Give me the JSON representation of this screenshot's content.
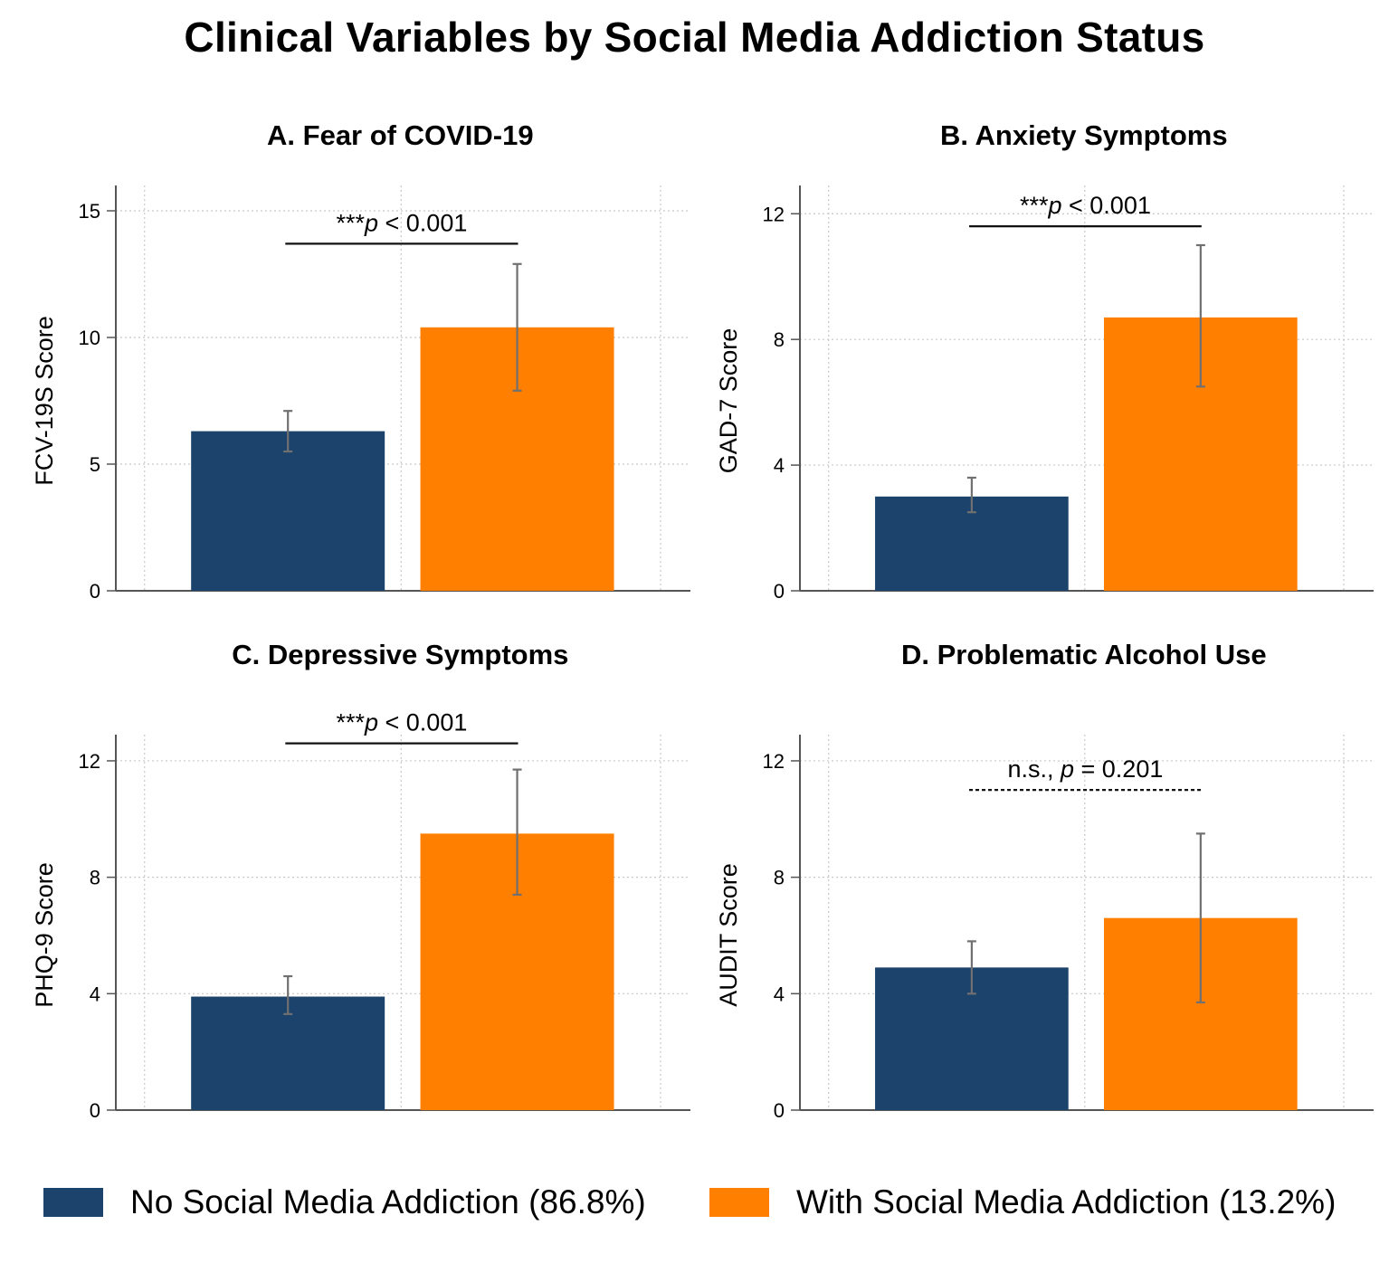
{
  "title": "Clinical Variables by Social Media Addiction Status",
  "colors": {
    "no_addiction": "#1b436b",
    "with_addiction": "#ff7f00",
    "axis": "#555555",
    "grid": "#c8c8c8",
    "errorbar": "#707070"
  },
  "legend": [
    {
      "label": "No Social Media Addiction (86.8%)",
      "color": "#1b436b"
    },
    {
      "label": "With Social Media Addiction (13.2%)",
      "color": "#ff7f00"
    }
  ],
  "chart_data": [
    {
      "type": "bar",
      "title": "A. Fear of COVID-19",
      "ylabel": "FCV-19S Score",
      "xlabel": "",
      "ylim": [
        0,
        16
      ],
      "yticks": [
        0,
        5,
        10,
        15
      ],
      "grid": true,
      "categories": [
        "No Social Media Addiction",
        "With Social Media Addiction"
      ],
      "values": [
        6.3,
        10.4
      ],
      "error_low": [
        5.5,
        7.9
      ],
      "error_high": [
        7.1,
        12.9
      ],
      "sig_star": "***",
      "sig_p": "p",
      "sig_rest": " < 0.001",
      "sig_level": 13.7,
      "sig_dashed": false
    },
    {
      "type": "bar",
      "title": "B. Anxiety Symptoms",
      "ylabel": "GAD-7 Score",
      "xlabel": "",
      "ylim": [
        0,
        12.9
      ],
      "yticks": [
        0,
        4,
        8,
        12
      ],
      "grid": true,
      "categories": [
        "No Social Media Addiction",
        "With Social Media Addiction"
      ],
      "values": [
        3.0,
        8.7
      ],
      "error_low": [
        2.5,
        6.5
      ],
      "error_high": [
        3.6,
        11.0
      ],
      "sig_star": "***",
      "sig_p": "p",
      "sig_rest": " < 0.001",
      "sig_level": 11.6,
      "sig_dashed": false
    },
    {
      "type": "bar",
      "title": "C. Depressive Symptoms",
      "ylabel": "PHQ-9 Score",
      "xlabel": "",
      "ylim": [
        0,
        12.9
      ],
      "yticks": [
        0,
        4,
        8,
        12
      ],
      "grid": true,
      "categories": [
        "No Social Media Addiction",
        "With Social Media Addiction"
      ],
      "values": [
        3.9,
        9.5
      ],
      "error_low": [
        3.3,
        7.4
      ],
      "error_high": [
        4.6,
        11.7
      ],
      "sig_star": "***",
      "sig_p": "p",
      "sig_rest": " < 0.001",
      "sig_level": 12.6,
      "sig_dashed": false
    },
    {
      "type": "bar",
      "title": "D. Problematic Alcohol Use",
      "ylabel": "AUDIT Score",
      "xlabel": "",
      "ylim": [
        0,
        12.9
      ],
      "yticks": [
        0,
        4,
        8,
        12
      ],
      "grid": true,
      "categories": [
        "No Social Media Addiction",
        "With Social Media Addiction"
      ],
      "values": [
        4.9,
        6.6
      ],
      "error_low": [
        4.0,
        3.7
      ],
      "error_high": [
        5.8,
        9.5
      ],
      "sig_star": "n.s., ",
      "sig_p": "p",
      "sig_rest": " = 0.201",
      "sig_level": 11.0,
      "sig_dashed": true
    }
  ]
}
